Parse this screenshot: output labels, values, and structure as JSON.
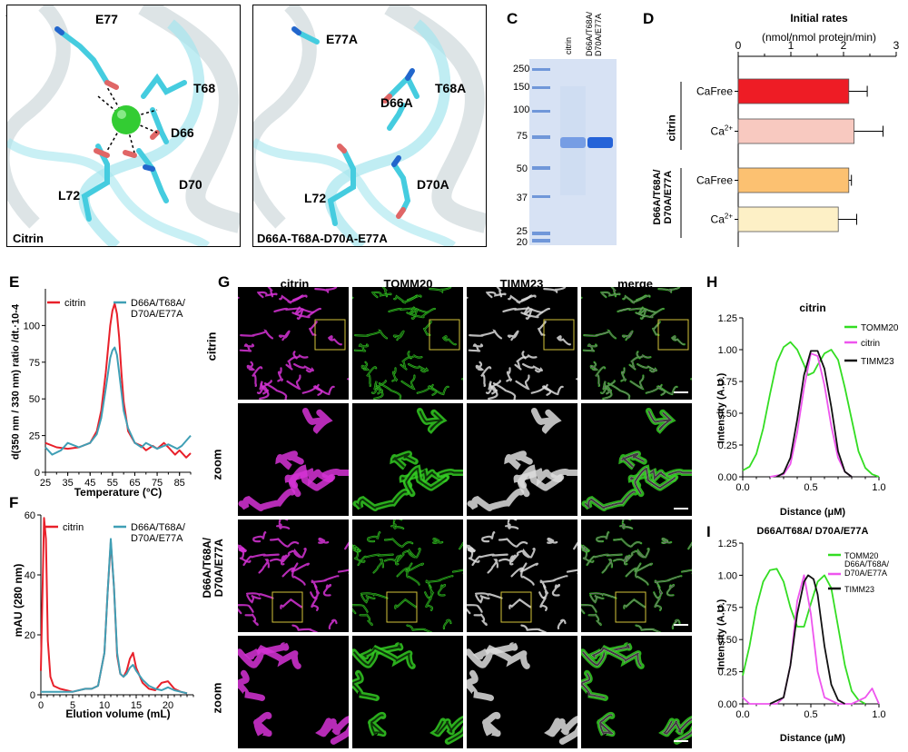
{
  "panels": {
    "A": {
      "letter": "A",
      "caption": "Citrin",
      "residues": [
        "E77",
        "T68",
        "D66",
        "L72",
        "D70"
      ]
    },
    "B": {
      "letter": "B",
      "caption": "D66A-T68A-D70A-E77A",
      "residues": [
        "E77A",
        "T68A",
        "D66A",
        "L72",
        "D70A"
      ]
    },
    "C": {
      "letter": "C",
      "lanes": [
        "citrin",
        "D66A/T68A/\nD70A/E77A"
      ],
      "markers": [
        "250",
        "150",
        "100",
        "75",
        "50",
        "37",
        "25",
        "20"
      ]
    },
    "D": {
      "letter": "D"
    },
    "E": {
      "letter": "E"
    },
    "F": {
      "letter": "F"
    },
    "G": {
      "letter": "G",
      "columns": [
        "citrin",
        "TOMM20",
        "TIMM23",
        "merge"
      ],
      "rows": [
        "citrin",
        "zoom",
        "D66A/T68A/\nD70A/E77A",
        "zoom"
      ]
    },
    "H": {
      "letter": "H"
    },
    "I": {
      "letter": "I"
    }
  },
  "colors": {
    "citrin": "#e8202a",
    "mutant": "#3f9fb5",
    "tomm20": "#33dd22",
    "citrin_line": "#ee55ee",
    "timm23": "#111111",
    "protein": "#45ccdf",
    "calcium": "#33cc33"
  },
  "chart_data": [
    {
      "panel": "D",
      "type": "bar",
      "orientation": "horizontal",
      "title": "Initial rates",
      "subtitle": "(nmol/nmol protein/min)",
      "xlim": [
        0,
        3
      ],
      "ticks": [
        "0",
        "1",
        "2",
        "3"
      ],
      "groups": [
        {
          "label": "citrin",
          "items": [
            {
              "label": "CaFree",
              "value": 2.1,
              "error": 0.35,
              "color": "#ee1c25"
            },
            {
              "label": "Ca2+",
              "value": 2.2,
              "error": 0.55,
              "color": "#f8c9c0"
            }
          ]
        },
        {
          "label": "D66A/T68A/\nD70A/E77A",
          "items": [
            {
              "label": "CaFree",
              "value": 2.1,
              "error": 0.05,
              "color": "#fcc171"
            },
            {
              "label": "Ca2+",
              "value": 1.9,
              "error": 0.35,
              "color": "#fdf0c6"
            }
          ]
        }
      ]
    },
    {
      "panel": "E",
      "type": "line",
      "xlabel": "Temperature (°C)",
      "ylabel": "d(350 nm / 330 nm) ratio /dt.·10-4",
      "xlim": [
        25,
        90
      ],
      "ylim": [
        0,
        125
      ],
      "xticks": [
        "25",
        "35",
        "45",
        "55",
        "65",
        "75",
        "85"
      ],
      "yticks": [
        "0",
        "25",
        "50",
        "75",
        "100"
      ],
      "series": [
        {
          "name": "citrin",
          "color": "#e8202a",
          "x": [
            25,
            30,
            35,
            40,
            45,
            48,
            50,
            52,
            54,
            55,
            56,
            57,
            58,
            59,
            60,
            62,
            65,
            68,
            70,
            73,
            75,
            78,
            80,
            83,
            85,
            88,
            90
          ],
          "y": [
            20,
            17,
            16,
            17,
            20,
            28,
            42,
            68,
            100,
            110,
            115,
            108,
            92,
            68,
            48,
            28,
            20,
            18,
            15,
            18,
            16,
            20,
            17,
            12,
            15,
            10,
            13
          ]
        },
        {
          "name": "D66A/T68A/\nD70A/E77A",
          "color": "#3f9fb5",
          "x": [
            25,
            28,
            32,
            35,
            40,
            45,
            48,
            50,
            52,
            54,
            55,
            56,
            57,
            58,
            59,
            60,
            62,
            65,
            68,
            70,
            75,
            78,
            80,
            84,
            86,
            90
          ],
          "y": [
            17,
            12,
            15,
            20,
            17,
            20,
            26,
            37,
            57,
            78,
            83,
            85,
            80,
            68,
            55,
            42,
            30,
            20,
            17,
            20,
            16,
            18,
            19,
            16,
            18,
            25
          ]
        }
      ]
    },
    {
      "panel": "F",
      "type": "line",
      "xlabel": "Elution volume (mL)",
      "ylabel": "mAU (280 nm)",
      "xlim": [
        0,
        24
      ],
      "ylim": [
        0,
        60
      ],
      "xticks": [
        "0",
        "5",
        "10",
        "15",
        "20"
      ],
      "yticks": [
        "0",
        "20",
        "40",
        "60"
      ],
      "series": [
        {
          "name": "citrin",
          "color": "#e8202a",
          "x": [
            0,
            0.5,
            0.8,
            1.1,
            1.5,
            2,
            3,
            5,
            7,
            8,
            9,
            10,
            10.5,
            11,
            11.5,
            12,
            12.5,
            13,
            13.5,
            14,
            14.5,
            15,
            16,
            17,
            18,
            19,
            20,
            21,
            22,
            23
          ],
          "y": [
            8,
            59,
            52,
            18,
            6,
            3,
            2,
            1,
            2,
            2,
            3,
            14,
            34,
            51,
            36,
            13,
            7,
            6,
            8,
            12,
            14,
            9,
            4,
            2,
            1.5,
            4,
            4.5,
            2,
            1,
            0.5
          ]
        },
        {
          "name": "D66A/T68A/\nD70A/E77A",
          "color": "#3f9fb5",
          "x": [
            0,
            1,
            3,
            5,
            7,
            8,
            9,
            10,
            10.5,
            11,
            11.5,
            12,
            12.5,
            13,
            13.5,
            14,
            14.5,
            15,
            16,
            17,
            18,
            19,
            20,
            21,
            22,
            23
          ],
          "y": [
            1,
            1,
            1,
            1,
            2,
            2,
            3,
            14,
            34,
            52,
            36,
            14,
            7,
            6,
            7,
            9,
            10,
            8,
            5,
            3,
            2,
            1.5,
            2.5,
            1.5,
            1,
            0.5
          ]
        }
      ]
    },
    {
      "panel": "H",
      "type": "line",
      "title": "citrin",
      "xlabel": "Distance (μM)",
      "ylabel": "Intensity (A.U.)",
      "xlim": [
        0,
        1
      ],
      "ylim": [
        0,
        1.25
      ],
      "xticks": [
        "0.0",
        "0.5",
        "1.0"
      ],
      "yticks": [
        "0.00",
        "0.25",
        "0.50",
        "0.75",
        "1.00",
        "1.25"
      ],
      "series": [
        {
          "name": "TOMM20",
          "color": "#33dd22",
          "x": [
            0,
            0.05,
            0.1,
            0.15,
            0.2,
            0.25,
            0.3,
            0.35,
            0.4,
            0.45,
            0.48,
            0.52,
            0.55,
            0.6,
            0.65,
            0.7,
            0.75,
            0.8,
            0.85,
            0.9,
            0.95,
            1.0
          ],
          "y": [
            0.05,
            0.08,
            0.18,
            0.38,
            0.65,
            0.9,
            1.02,
            1.06,
            1.0,
            0.88,
            0.8,
            0.82,
            0.88,
            0.97,
            1.0,
            0.92,
            0.7,
            0.45,
            0.2,
            0.07,
            0.02,
            0
          ]
        },
        {
          "name": "citrin",
          "color": "#ee55ee",
          "x": [
            0.2,
            0.3,
            0.35,
            0.4,
            0.45,
            0.5,
            0.55,
            0.6,
            0.65,
            0.7,
            0.75,
            0.8
          ],
          "y": [
            0,
            0.02,
            0.1,
            0.35,
            0.7,
            0.97,
            0.95,
            0.72,
            0.4,
            0.15,
            0.04,
            0
          ]
        },
        {
          "name": "TIMM23",
          "color": "#111111",
          "x": [
            0.25,
            0.3,
            0.35,
            0.4,
            0.45,
            0.5,
            0.55,
            0.6,
            0.65,
            0.7,
            0.75,
            0.8
          ],
          "y": [
            0,
            0.03,
            0.15,
            0.45,
            0.8,
            0.99,
            0.99,
            0.85,
            0.55,
            0.2,
            0.04,
            0
          ]
        }
      ]
    },
    {
      "panel": "I",
      "type": "line",
      "title": "D66A/T68A/ D70A/E77A",
      "xlabel": "Distance (μM)",
      "ylabel": "Intensity (A.U.)",
      "xlim": [
        0,
        1
      ],
      "ylim": [
        0,
        1.25
      ],
      "xticks": [
        "0.0",
        "0.5",
        "1.0"
      ],
      "yticks": [
        "0.00",
        "0.25",
        "0.50",
        "0.75",
        "1.00",
        "1.25"
      ],
      "series": [
        {
          "name": "TOMM20",
          "color": "#33dd22",
          "x": [
            0,
            0.05,
            0.1,
            0.15,
            0.2,
            0.25,
            0.3,
            0.35,
            0.4,
            0.45,
            0.5,
            0.55,
            0.6,
            0.65,
            0.7,
            0.75,
            0.8,
            0.85,
            0.9
          ],
          "y": [
            0.22,
            0.45,
            0.75,
            0.95,
            1.04,
            1.05,
            0.95,
            0.75,
            0.6,
            0.6,
            0.78,
            0.95,
            1.0,
            0.9,
            0.6,
            0.3,
            0.1,
            0.03,
            0
          ]
        },
        {
          "name": "D66A/T68A/\nD70A/E77A",
          "color": "#ee55ee",
          "x": [
            0,
            0.05,
            0.1,
            0.25,
            0.3,
            0.35,
            0.4,
            0.45,
            0.5,
            0.55,
            0.6,
            0.7,
            0.8,
            0.9,
            0.95,
            1.0
          ],
          "y": [
            0.05,
            0,
            0,
            0,
            0.05,
            0.3,
            0.8,
            1.0,
            0.7,
            0.25,
            0.05,
            0,
            0,
            0.05,
            0.12,
            0
          ]
        },
        {
          "name": "TIMM23",
          "color": "#111111",
          "x": [
            0.2,
            0.3,
            0.35,
            0.4,
            0.45,
            0.48,
            0.52,
            0.55,
            0.6,
            0.65,
            0.7,
            0.75
          ],
          "y": [
            0,
            0.05,
            0.3,
            0.7,
            0.95,
            1.0,
            0.97,
            0.85,
            0.45,
            0.15,
            0.03,
            0
          ]
        }
      ]
    }
  ]
}
